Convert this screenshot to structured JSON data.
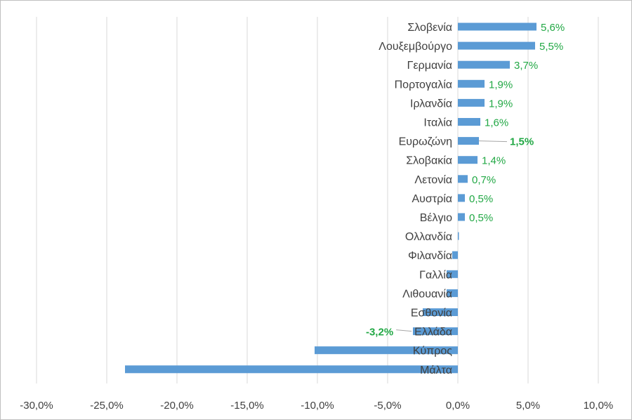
{
  "chart_data": {
    "type": "bar",
    "orientation": "horizontal",
    "categories": [
      "Σλοβενία",
      "Λουξεμβούργο",
      "Γερμανία",
      "Πορτογαλία",
      "Ιρλανδία",
      "Ιταλία",
      "Ευρωζώνη",
      "Σλοβακία",
      "Λετονία",
      "Αυστρία",
      "Βέλγιο",
      "Ολλανδία",
      "Φιλανδία",
      "Γαλλία",
      "Λιθουανία",
      "Εσθονία",
      "Ελλάδα",
      "Κύπρος",
      "Μάλτα"
    ],
    "values": [
      5.6,
      5.5,
      3.7,
      1.9,
      1.9,
      1.6,
      1.5,
      1.4,
      0.7,
      0.5,
      0.5,
      0.0,
      -0.4,
      -0.8,
      -0.8,
      -2.5,
      -3.2,
      -10.2,
      -23.7
    ],
    "data_labels": [
      "5,6%",
      "5,5%",
      "3,7%",
      "1,9%",
      "1,9%",
      "1,6%",
      "1,5%",
      "1,4%",
      "0,7%",
      "0,5%",
      "0,5%",
      "",
      "",
      "",
      "",
      "",
      "-3,2%",
      "",
      ""
    ],
    "highlight": {
      "Ευρωζώνη": "#119940",
      "Ελλάδα": "#e8141b"
    },
    "bar_color": "#5b9bd5",
    "label_color": "#22a845",
    "xlim": [
      -30,
      10
    ],
    "x_ticks": [
      -30,
      -25,
      -20,
      -15,
      -10,
      -5,
      0,
      5,
      10
    ],
    "x_tick_labels": [
      "-30,0%",
      "-25,0%",
      "-20,0%",
      "-15,0%",
      "-10,0%",
      "-5,0%",
      "0,0%",
      "5,0%",
      "10,0%"
    ],
    "grid": "vertical",
    "title": "",
    "xlabel": "",
    "ylabel": ""
  }
}
